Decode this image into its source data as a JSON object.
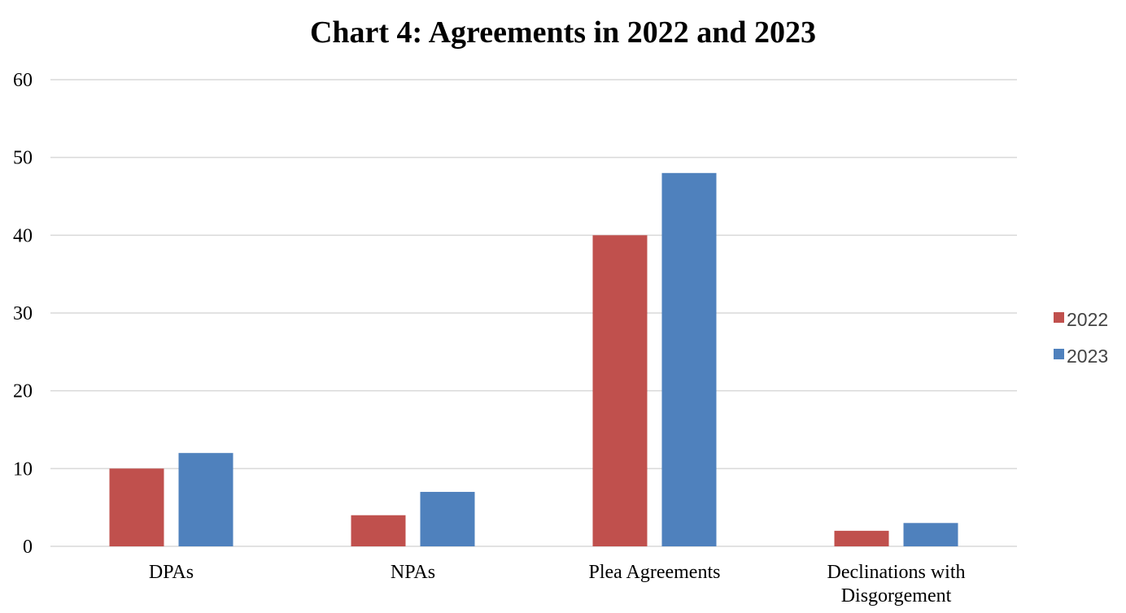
{
  "chart_data": {
    "type": "bar",
    "title": "Chart 4: Agreements in 2022 and 2023",
    "xlabel": "",
    "ylabel": "",
    "categories": [
      "DPAs",
      "NPAs",
      "Plea Agreements",
      "Declinations with Disgorgement"
    ],
    "category_lines": [
      [
        "DPAs"
      ],
      [
        "NPAs"
      ],
      [
        "Plea Agreements"
      ],
      [
        "Declinations with",
        "Disgorgement"
      ]
    ],
    "series": [
      {
        "name": "2022",
        "values": [
          10,
          4,
          40,
          2
        ],
        "color": "#C0504D"
      },
      {
        "name": "2023",
        "values": [
          12,
          7,
          48,
          3
        ],
        "color": "#4F81BD"
      }
    ],
    "ylim": [
      0,
      60
    ],
    "yticks": [
      0,
      10,
      20,
      30,
      40,
      50,
      60
    ],
    "grid": true,
    "legend_position": "right"
  }
}
